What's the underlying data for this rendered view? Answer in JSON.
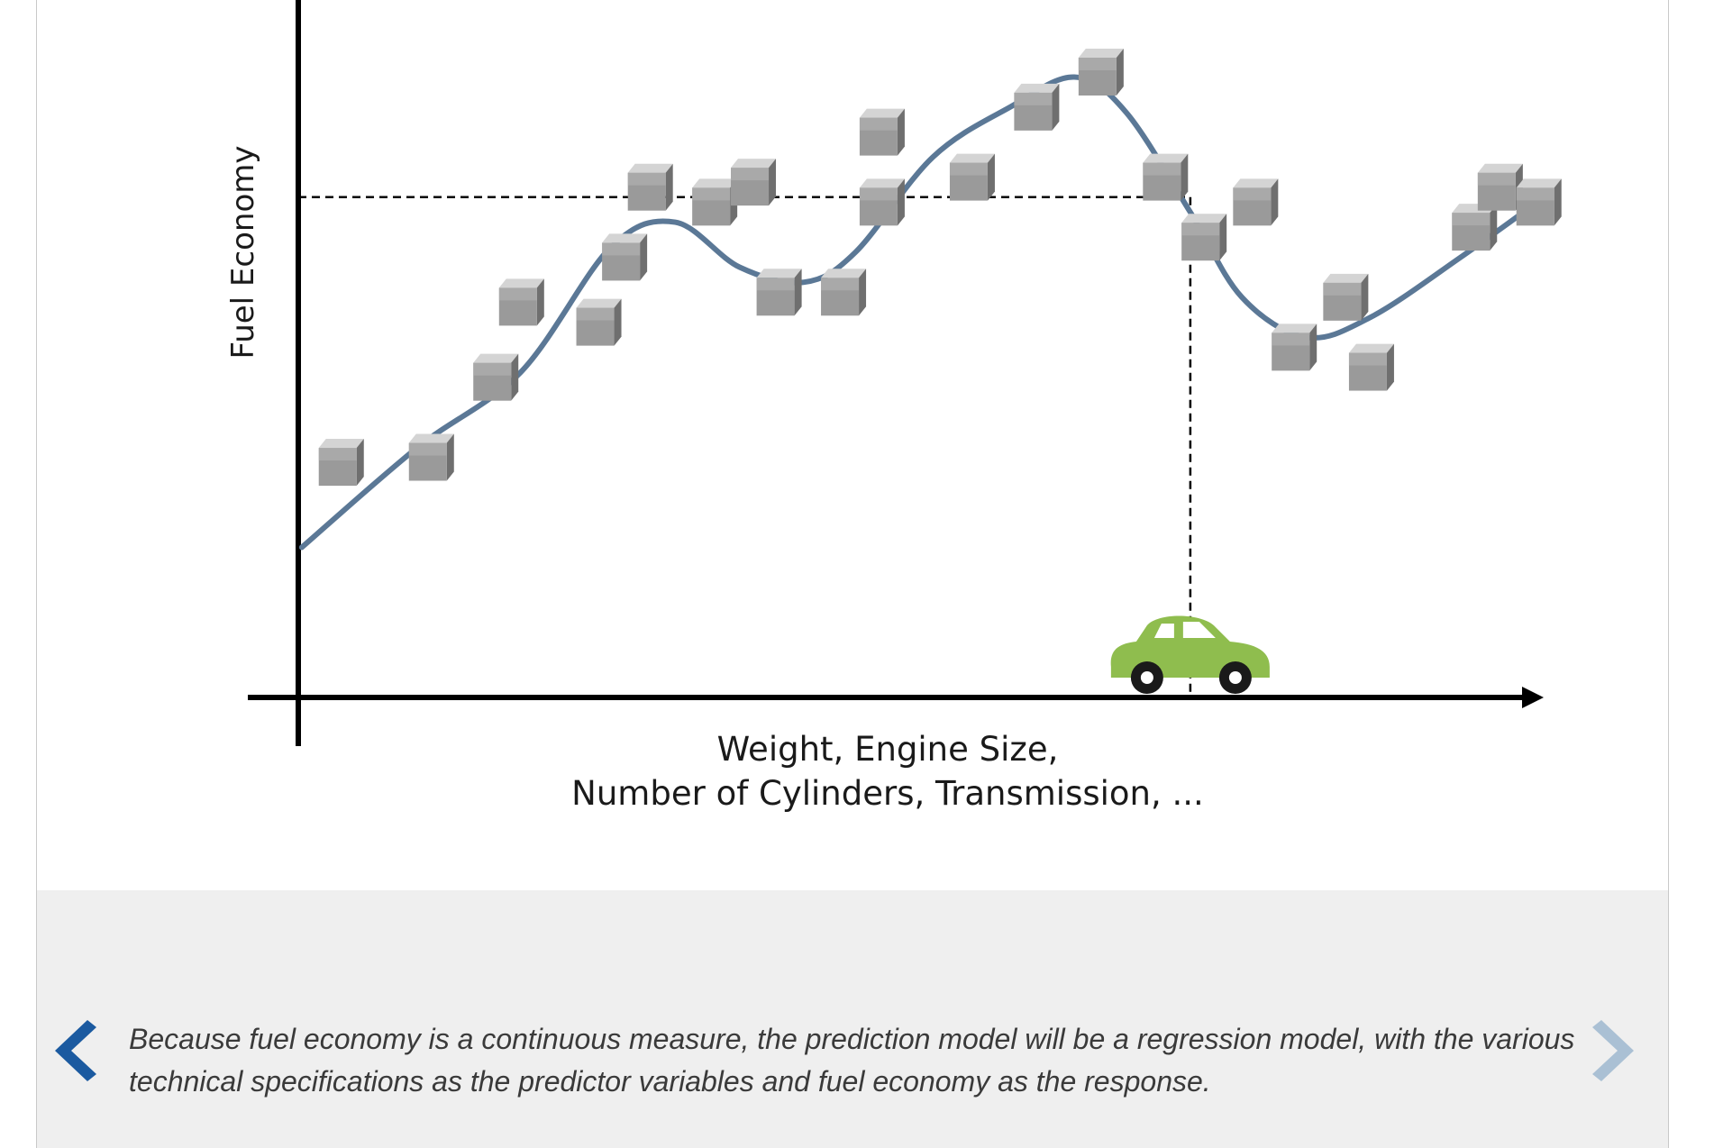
{
  "chart_data": {
    "type": "scatter",
    "ylabel": "Fuel Economy",
    "xlabel_lines": [
      "Weight, Engine Size,",
      "Number of Cylinders, Transmission, ..."
    ],
    "series": [
      {
        "kind": "points",
        "values": [
          [
            0.06,
            0.47
          ],
          [
            0.13,
            0.48
          ],
          [
            0.18,
            0.64
          ],
          [
            0.2,
            0.79
          ],
          [
            0.26,
            0.75
          ],
          [
            0.28,
            0.88
          ],
          [
            0.3,
            1.02
          ],
          [
            0.35,
            0.99
          ],
          [
            0.38,
            1.03
          ],
          [
            0.4,
            0.81
          ],
          [
            0.45,
            0.81
          ],
          [
            0.48,
            0.99
          ],
          [
            0.48,
            1.13
          ],
          [
            0.55,
            1.04
          ],
          [
            0.6,
            1.18
          ],
          [
            0.65,
            1.25
          ],
          [
            0.7,
            1.04
          ],
          [
            0.73,
            0.92
          ],
          [
            0.77,
            0.99
          ],
          [
            0.8,
            0.7
          ],
          [
            0.84,
            0.8
          ],
          [
            0.86,
            0.66
          ],
          [
            0.94,
            0.94
          ],
          [
            0.96,
            1.02
          ],
          [
            0.99,
            0.99
          ]
        ]
      },
      {
        "kind": "fit-curve",
        "values": [
          [
            0.03,
            0.3
          ],
          [
            0.12,
            0.5
          ],
          [
            0.2,
            0.65
          ],
          [
            0.27,
            0.9
          ],
          [
            0.32,
            0.95
          ],
          [
            0.37,
            0.86
          ],
          [
            0.42,
            0.83
          ],
          [
            0.46,
            0.89
          ],
          [
            0.52,
            1.08
          ],
          [
            0.58,
            1.18
          ],
          [
            0.63,
            1.24
          ],
          [
            0.67,
            1.17
          ],
          [
            0.72,
            0.97
          ],
          [
            0.76,
            0.8
          ],
          [
            0.81,
            0.72
          ],
          [
            0.86,
            0.76
          ],
          [
            0.93,
            0.88
          ],
          [
            1.0,
            1.01
          ]
        ]
      }
    ],
    "reference_point": [
      0.72,
      1.0
    ],
    "reference_marker": "car-icon",
    "legend": "none",
    "grid": false,
    "colors": {
      "curve": "#5b7896",
      "axis": "#000000",
      "car": "#8fbd4e",
      "point": "#9a9a9a"
    }
  },
  "caption": {
    "text": "Because fuel economy is a continuous measure, the prediction model will be a regression model, with the various technical specifications as the predictor variables and fuel economy as the response."
  },
  "nav": {
    "prev_icon": "chevron-left-icon",
    "next_icon": "chevron-right-icon",
    "prev_color": "#1b5aa0",
    "next_color": "#aac0d4"
  }
}
